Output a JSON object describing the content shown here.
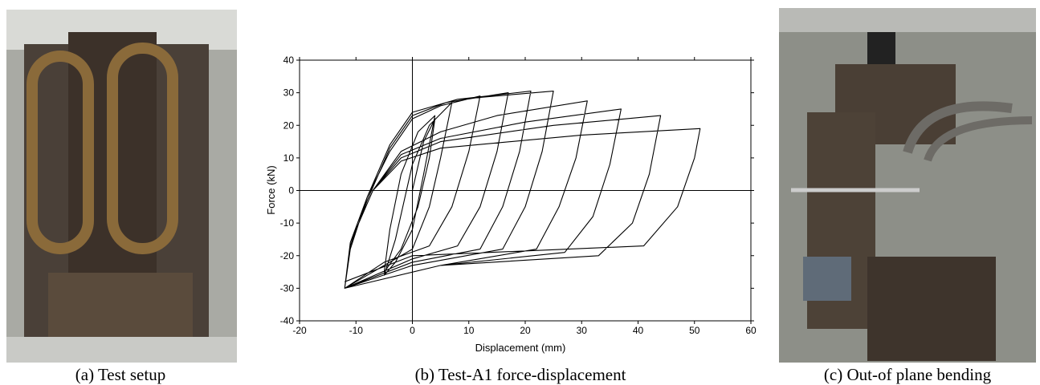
{
  "captions": [
    "(a) Test setup",
    "(b) Test-A1 force-displacement",
    "(c) Out-of plane bending"
  ],
  "chart_data": {
    "type": "line",
    "x_label": "Displacement (mm)",
    "y_label": "Force (kN)",
    "xlim": [
      -20,
      60
    ],
    "xticks": [
      -20,
      -10,
      0,
      10,
      20,
      30,
      40,
      50,
      60
    ],
    "ylim": [
      -40,
      40
    ],
    "yticks": [
      -40,
      -30,
      -20,
      -10,
      0,
      10,
      20,
      30,
      40
    ],
    "color": "#000000",
    "x": [
      0,
      2,
      4,
      3,
      1,
      -2,
      -5,
      -4,
      -2,
      1,
      4,
      2,
      0,
      -3,
      -5,
      -3,
      0,
      3,
      7,
      5,
      3,
      0,
      -5,
      -9,
      -12,
      -11,
      -8,
      -4,
      0,
      5,
      12,
      10,
      7,
      3,
      -5,
      -12,
      -11,
      -8,
      -4,
      0,
      6,
      17,
      15,
      12,
      8,
      0,
      -12,
      -11,
      -8,
      -4,
      0,
      8,
      21,
      19,
      16,
      12,
      0,
      -12,
      -11,
      -8,
      -4,
      0,
      8,
      25,
      23,
      20,
      16,
      0,
      -12,
      -11,
      -7,
      -2,
      5,
      15,
      31,
      29,
      26,
      22,
      5,
      -12,
      -11,
      -7,
      -2,
      5,
      20,
      37,
      35,
      32,
      27,
      5,
      -12,
      -11,
      -7,
      -2,
      5,
      25,
      44,
      42,
      39,
      33,
      5,
      -12,
      -11,
      -7,
      -2,
      5,
      30,
      51,
      50,
      47,
      41,
      0,
      -12
    ],
    "values": [
      0,
      15,
      22,
      10,
      -5,
      -18,
      -25,
      -12,
      5,
      18,
      23,
      5,
      -12,
      -22,
      -26,
      -15,
      8,
      20,
      27,
      10,
      -5,
      -18,
      -23,
      -27,
      -30,
      -18,
      -2,
      12,
      22,
      26,
      29,
      12,
      -5,
      -17,
      -22,
      -30,
      -17,
      -3,
      13,
      23,
      27,
      30,
      12,
      -5,
      -17,
      -21,
      -30,
      -16,
      -2,
      14,
      24,
      28,
      30.5,
      12,
      -5,
      -18,
      -22,
      -30,
      -16,
      -2,
      14,
      24,
      28,
      30.5,
      12,
      -5,
      -18,
      -23,
      -30,
      -16,
      0,
      12,
      18,
      23,
      27.5,
      10,
      -5,
      -18,
      -23,
      -30,
      -16,
      0,
      11,
      16,
      21,
      25,
      8,
      -8,
      -19,
      -23,
      -30,
      -16,
      0,
      10,
      15,
      20,
      23,
      5,
      -10,
      -20,
      -23,
      -30,
      -16,
      0,
      9,
      13,
      17,
      19,
      10,
      -5,
      -17,
      -20,
      -28
    ]
  }
}
